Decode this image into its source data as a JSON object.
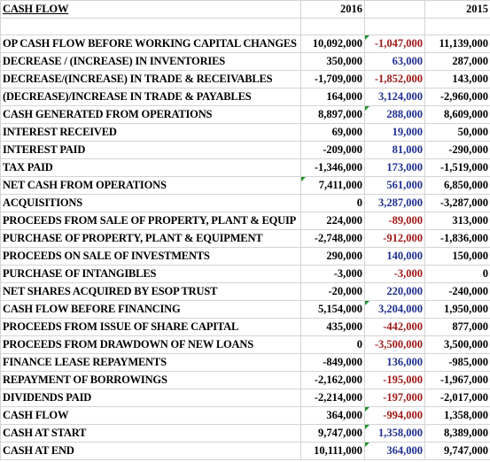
{
  "header": {
    "title": "CASH FLOW",
    "years": [
      "2016",
      "2015"
    ]
  },
  "rows": [
    {
      "label": "OP CASH FLOW BEFORE WORKING CAPITAL CHANGES",
      "a": "10,092,000",
      "b": "-1,047,000",
      "c": "11,139,000",
      "tri": "b"
    },
    {
      "label": "DECREASE / (INCREASE) IN INVENTORIES",
      "a": "350,000",
      "b": "63,000",
      "c": "287,000"
    },
    {
      "label": "DECREASE/(INCREASE) IN TRADE & RECEIVABLES",
      "a": "-1,709,000",
      "b": "-1,852,000",
      "c": "143,000"
    },
    {
      "label": "(DECREASE)/INCREASE IN TRADE & PAYABLES",
      "a": "164,000",
      "b": "3,124,000",
      "c": "-2,960,000"
    },
    {
      "label": "CASH GENERATED FROM OPERATIONS",
      "a": "8,897,000",
      "b": "288,000",
      "c": "8,609,000",
      "tri": "b"
    },
    {
      "label": "INTEREST RECEIVED",
      "a": "69,000",
      "b": "19,000",
      "c": "50,000"
    },
    {
      "label": "INTEREST PAID",
      "a": "-209,000",
      "b": "81,000",
      "c": "-290,000"
    },
    {
      "label": "TAX PAID",
      "a": "-1,346,000",
      "b": "173,000",
      "c": "-1,519,000"
    },
    {
      "label": "NET CASH FROM OPERATIONS",
      "a": "7,411,000",
      "b": "561,000",
      "c": "6,850,000",
      "tri": "a"
    },
    {
      "label": "ACQUISITIONS",
      "a": "0",
      "b": "3,287,000",
      "c": "-3,287,000"
    },
    {
      "label": "PROCEEDS FROM SALE OF PROPERTY, PLANT & EQUIP",
      "a": "224,000",
      "b": "-89,000",
      "c": "313,000"
    },
    {
      "label": "PURCHASE OF PROPERTY, PLANT & EQUIPMENT",
      "a": "-2,748,000",
      "b": "-912,000",
      "c": "-1,836,000"
    },
    {
      "label": "PROCEEDS ON SALE OF INVESTMENTS",
      "a": "290,000",
      "b": "140,000",
      "c": "150,000"
    },
    {
      "label": "PURCHASE OF INTANGIBLES",
      "a": "-3,000",
      "b": "-3,000",
      "c": "0"
    },
    {
      "label": "NET SHARES ACQUIRED BY ESOP TRUST",
      "a": "-20,000",
      "b": "220,000",
      "c": "-240,000"
    },
    {
      "label": "CASH FLOW BEFORE FINANCING",
      "a": "5,154,000",
      "b": "3,204,000",
      "c": "1,950,000",
      "tri": "b"
    },
    {
      "label": "PROCEEDS FROM ISSUE OF SHARE CAPITAL",
      "a": "435,000",
      "b": "-442,000",
      "c": "877,000"
    },
    {
      "label": "PROCEEDS FROM DRAWDOWN OF NEW LOANS",
      "a": "0",
      "b": "-3,500,000",
      "c": "3,500,000"
    },
    {
      "label": "FINANCE LEASE REPAYMENTS",
      "a": "-849,000",
      "b": "136,000",
      "c": "-985,000"
    },
    {
      "label": "REPAYMENT OF BORROWINGS",
      "a": "-2,162,000",
      "b": "-195,000",
      "c": "-1,967,000"
    },
    {
      "label": "DIVIDENDS PAID",
      "a": "-2,214,000",
      "b": "-197,000",
      "c": "-2,017,000"
    },
    {
      "label": "CASH FLOW",
      "a": "364,000",
      "b": "-994,000",
      "c": "1,358,000",
      "tri": "b"
    },
    {
      "label": "CASH AT START",
      "a": "9,747,000",
      "b": "1,358,000",
      "c": "8,389,000",
      "tri": "b"
    },
    {
      "label": "CASH AT END",
      "a": "10,111,000",
      "b": "364,000",
      "c": "9,747,000",
      "tri": "b"
    }
  ]
}
